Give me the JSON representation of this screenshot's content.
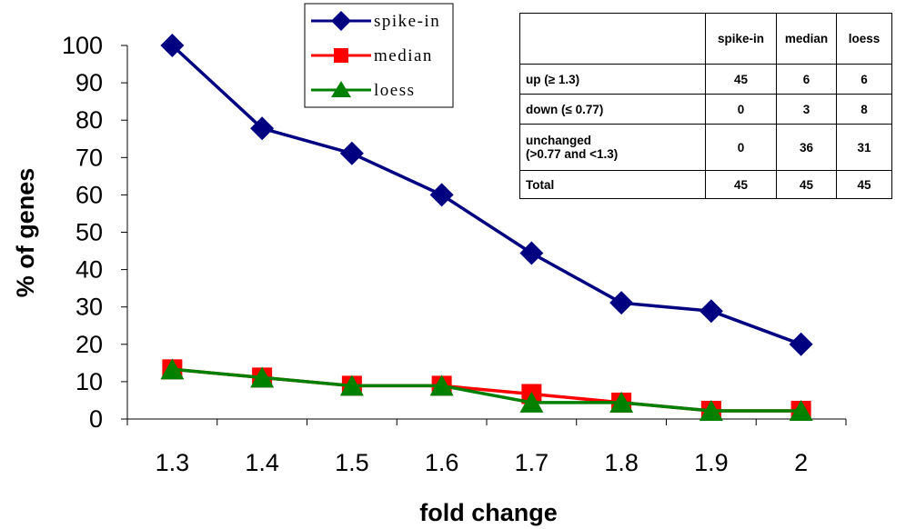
{
  "chart_data": {
    "type": "line",
    "xlabel": "fold change",
    "ylabel": "% of genes",
    "x": [
      "1.3",
      "1.4",
      "1.5",
      "1.6",
      "1.7",
      "1.8",
      "1.9",
      "2"
    ],
    "ylim": [
      0,
      100
    ],
    "yticks": [
      0,
      10,
      20,
      30,
      40,
      50,
      60,
      70,
      80,
      90,
      100
    ],
    "grid": false,
    "legend_position": "top-center",
    "series": [
      {
        "name": "spike-in",
        "color": "#000080",
        "marker": "diamond",
        "values": [
          100,
          77.8,
          71.1,
          60,
          44.4,
          31.1,
          28.9,
          20
        ]
      },
      {
        "name": "median",
        "color": "#ff0000",
        "marker": "square",
        "values": [
          13.3,
          11.1,
          8.9,
          8.9,
          6.7,
          4.4,
          2.2,
          2.2
        ]
      },
      {
        "name": "loess",
        "color": "#008000",
        "marker": "triangle",
        "values": [
          13.3,
          11.1,
          8.9,
          8.9,
          4.4,
          4.4,
          2.2,
          2.2
        ]
      }
    ]
  },
  "table": {
    "headers": [
      "",
      "spike-in",
      "median",
      "loess"
    ],
    "rows": [
      {
        "label": "up (≥ 1.3)",
        "values": [
          "45",
          "6",
          "6"
        ]
      },
      {
        "label": "down (≤ 0.77)",
        "values": [
          "0",
          "3",
          "8"
        ]
      },
      {
        "label_line1": "unchanged",
        "label_line2": "(>0.77 and <1.3)",
        "values": [
          "0",
          "36",
          "31"
        ]
      },
      {
        "label": "Total",
        "values": [
          "45",
          "45",
          "45"
        ]
      }
    ]
  }
}
